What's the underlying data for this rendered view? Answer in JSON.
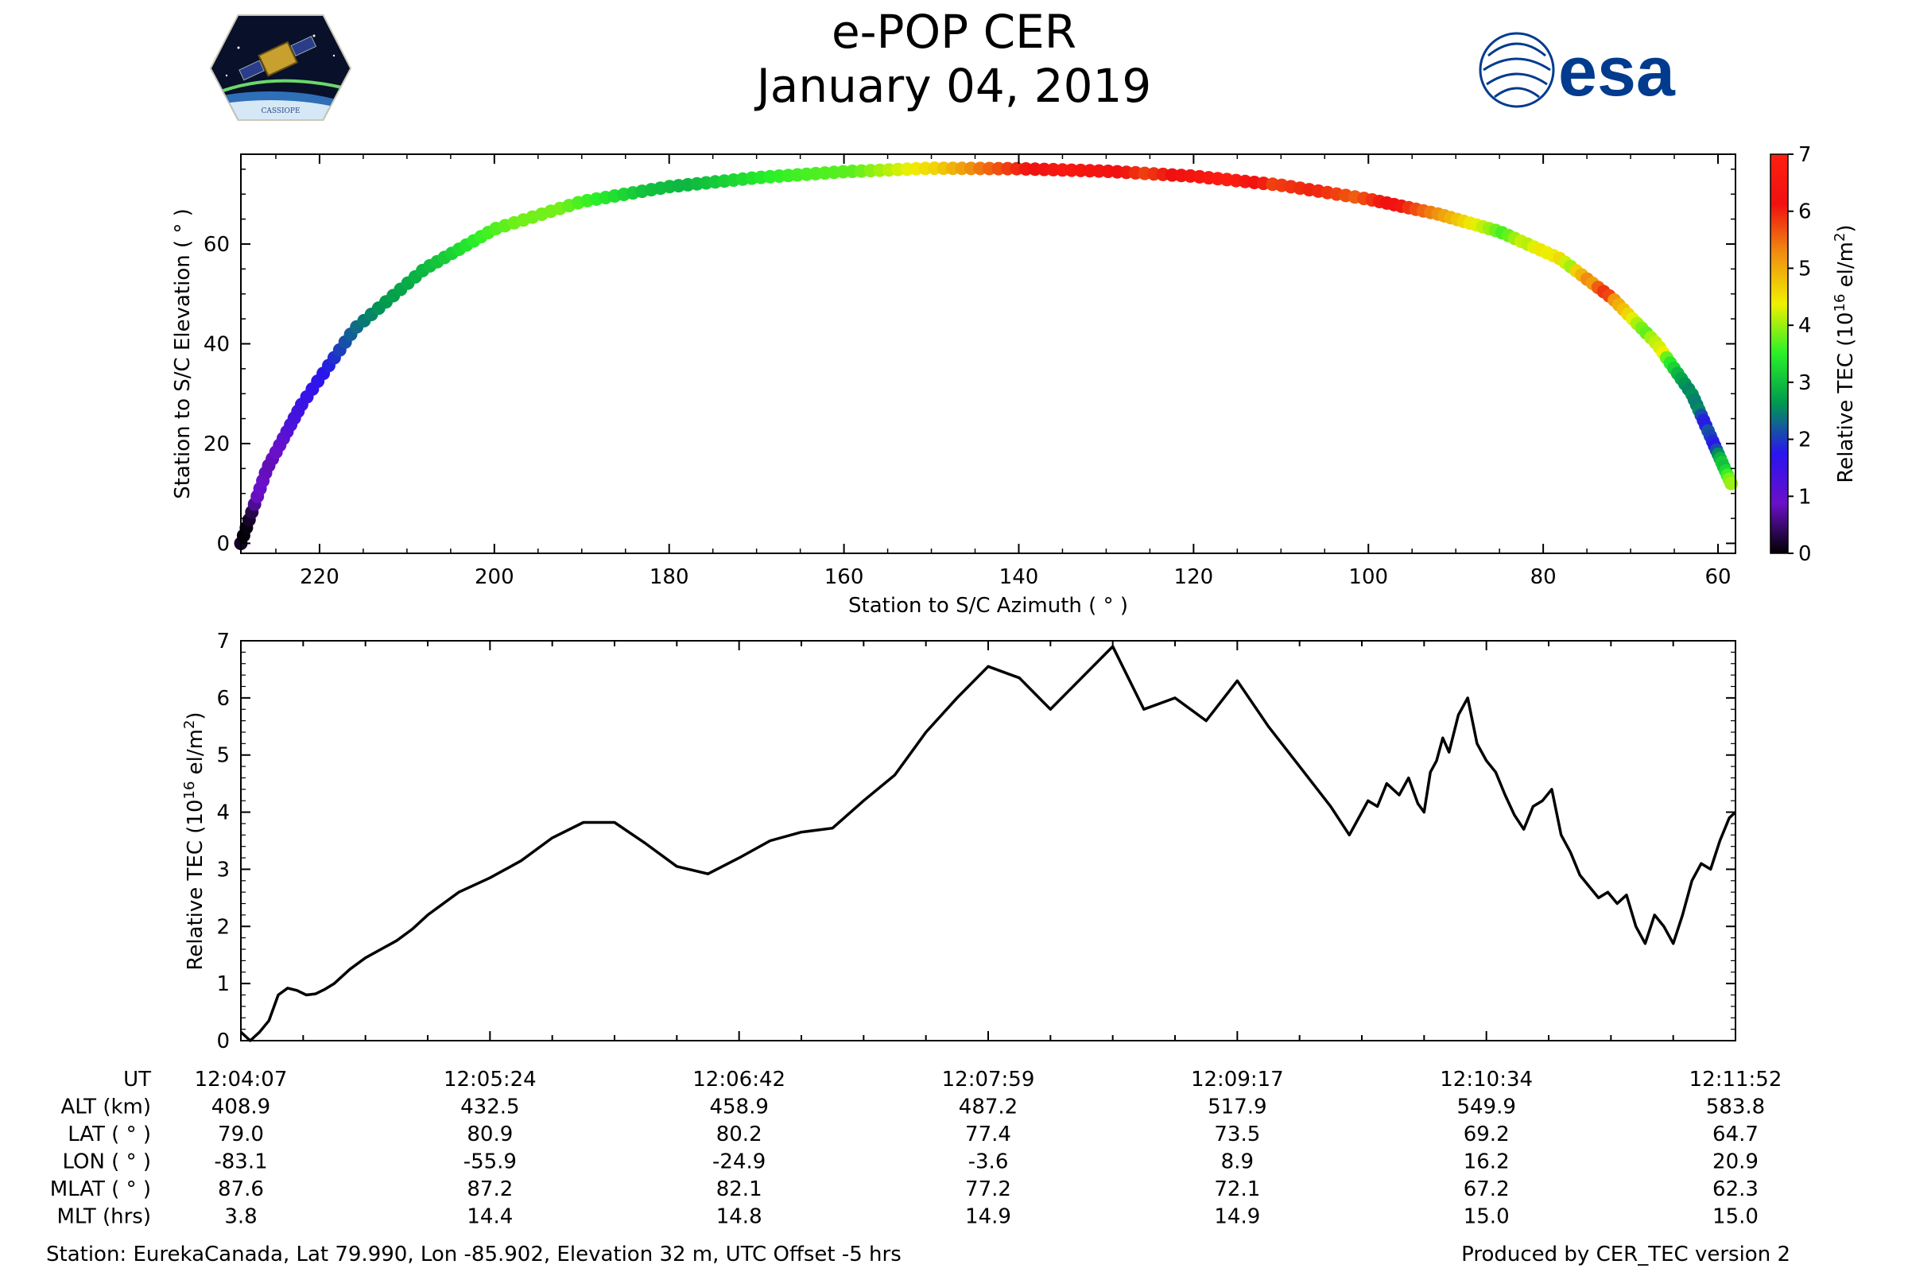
{
  "header": {
    "title": "e-POP CER",
    "date": "January 04, 2019",
    "left_logo_text": "CASSIOPE",
    "right_logo_text": "esa"
  },
  "colors": {
    "line": "#000000",
    "esa_blue": "#003b8e",
    "colorbar": [
      "#000000",
      "#6a10c8",
      "#2a14f0",
      "#009850",
      "#28f028",
      "#f0f000",
      "#f09010",
      "#f01010",
      "#ff2010"
    ]
  },
  "chart_data": [
    {
      "type": "scatter",
      "title": "",
      "xlabel": "Station to S/C Azimuth ( ° )",
      "ylabel": "Station to S/C Elevation ( ° )",
      "xlim": [
        229,
        58
      ],
      "ylim": [
        -2,
        78
      ],
      "xticks": [
        220,
        200,
        180,
        160,
        140,
        120,
        100,
        80,
        60
      ],
      "yticks": [
        0,
        20,
        40,
        60
      ],
      "colorbar": {
        "label": "Relative TEC",
        "unit_base": "10",
        "unit_exp": "16",
        "unit_suffix": " el/m",
        "unit_sup": "2",
        "range": [
          0,
          7
        ],
        "ticks": [
          0,
          1,
          2,
          3,
          4,
          5,
          6,
          7
        ]
      },
      "track": [
        {
          "az": 229.0,
          "el": 0.0
        },
        {
          "az": 226.0,
          "el": 15.0
        },
        {
          "az": 222.0,
          "el": 28.0
        },
        {
          "az": 216.0,
          "el": 43.0
        },
        {
          "az": 208.0,
          "el": 55.0
        },
        {
          "az": 200.0,
          "el": 63.0
        },
        {
          "az": 190.0,
          "el": 68.5
        },
        {
          "az": 180.0,
          "el": 71.5
        },
        {
          "az": 170.0,
          "el": 73.3
        },
        {
          "az": 160.0,
          "el": 74.5
        },
        {
          "az": 150.0,
          "el": 75.2
        },
        {
          "az": 140.0,
          "el": 75.1
        },
        {
          "az": 130.0,
          "el": 74.6
        },
        {
          "az": 120.0,
          "el": 73.6
        },
        {
          "az": 110.0,
          "el": 71.8
        },
        {
          "az": 100.0,
          "el": 69.0
        },
        {
          "az": 92.0,
          "el": 66.0
        },
        {
          "az": 85.0,
          "el": 62.5
        },
        {
          "az": 78.0,
          "el": 57.0
        },
        {
          "az": 72.0,
          "el": 49.0
        },
        {
          "az": 67.0,
          "el": 40.0
        },
        {
          "az": 63.0,
          "el": 30.0
        },
        {
          "az": 60.5,
          "el": 20.0
        },
        {
          "az": 58.5,
          "el": 12.0
        }
      ]
    },
    {
      "type": "line",
      "title": "",
      "xlabel": "",
      "ylabel": "Relative TEC",
      "ylabel_unit": {
        "base": "10",
        "exp": "16",
        "suffix": " el/m",
        "sup": "2"
      },
      "ylim": [
        0,
        7
      ],
      "yticks": [
        0,
        1,
        2,
        3,
        4,
        5,
        6,
        7
      ],
      "xlim": [
        0,
        480
      ],
      "x_unit": "seconds since 12:04:07",
      "x": [
        0,
        3,
        6,
        9,
        12,
        15,
        18,
        21,
        24,
        27,
        30,
        35,
        40,
        45,
        50,
        55,
        60,
        70,
        80,
        90,
        100,
        110,
        120,
        130,
        140,
        150,
        160,
        170,
        180,
        190,
        200,
        210,
        220,
        230,
        240,
        250,
        260,
        270,
        280,
        290,
        300,
        310,
        320,
        330,
        340,
        350,
        356,
        360,
        362,
        365,
        368,
        372,
        375,
        378,
        380,
        382,
        384,
        386,
        388,
        391,
        394,
        397,
        400,
        403,
        406,
        409,
        412,
        415,
        418,
        421,
        424,
        427,
        430,
        433,
        436,
        439,
        442,
        445,
        448,
        451,
        454,
        457,
        460,
        463,
        466,
        469,
        472,
        475,
        478,
        480
      ],
      "values": [
        0.15,
        0.0,
        0.15,
        0.35,
        0.8,
        0.92,
        0.88,
        0.8,
        0.82,
        0.9,
        1.0,
        1.25,
        1.45,
        1.6,
        1.75,
        1.95,
        2.2,
        2.6,
        2.85,
        3.15,
        3.55,
        3.82,
        3.82,
        3.45,
        3.05,
        2.92,
        3.2,
        3.5,
        3.65,
        3.72,
        4.2,
        4.65,
        5.4,
        6.0,
        6.55,
        6.35,
        5.8,
        6.35,
        6.9,
        5.8,
        6.0,
        5.6,
        6.3,
        5.5,
        4.8,
        4.1,
        3.6,
        4.0,
        4.2,
        4.1,
        4.5,
        4.3,
        4.6,
        4.15,
        4.0,
        4.7,
        4.9,
        5.3,
        5.05,
        5.7,
        6.0,
        5.2,
        4.9,
        4.7,
        4.3,
        3.95,
        3.7,
        4.1,
        4.2,
        4.4,
        3.6,
        3.3,
        2.9,
        2.7,
        2.5,
        2.6,
        2.4,
        2.55,
        2.0,
        1.7,
        2.2,
        2.0,
        1.7,
        2.2,
        2.8,
        3.1,
        3.0,
        3.5,
        3.9,
        4.0
      ]
    }
  ],
  "table": {
    "rows": [
      {
        "label": "UT",
        "values": [
          "12:04:07",
          "12:05:24",
          "12:06:42",
          "12:07:59",
          "12:09:17",
          "12:10:34",
          "12:11:52"
        ]
      },
      {
        "label": "ALT (km)",
        "values": [
          "408.9",
          "432.5",
          "458.9",
          "487.2",
          "517.9",
          "549.9",
          "583.8"
        ]
      },
      {
        "label": "LAT ( ° )",
        "values": [
          "79.0",
          "80.9",
          "80.2",
          "77.4",
          "73.5",
          "69.2",
          "64.7"
        ]
      },
      {
        "label": "LON ( ° )",
        "values": [
          "-83.1",
          "-55.9",
          "-24.9",
          "-3.6",
          "8.9",
          "16.2",
          "20.9"
        ]
      },
      {
        "label": "MLAT ( ° )",
        "values": [
          "87.6",
          "87.2",
          "82.1",
          "77.2",
          "72.1",
          "67.2",
          "62.3"
        ]
      },
      {
        "label": "MLT (hrs)",
        "values": [
          "3.8",
          "14.4",
          "14.8",
          "14.9",
          "14.9",
          "15.0",
          "15.0"
        ]
      }
    ]
  },
  "footer": {
    "station": "Station: EurekaCanada, Lat 79.990, Lon -85.902, Elevation 32 m, UTC Offset -5 hrs",
    "producer": "Produced by CER_TEC version 2"
  }
}
